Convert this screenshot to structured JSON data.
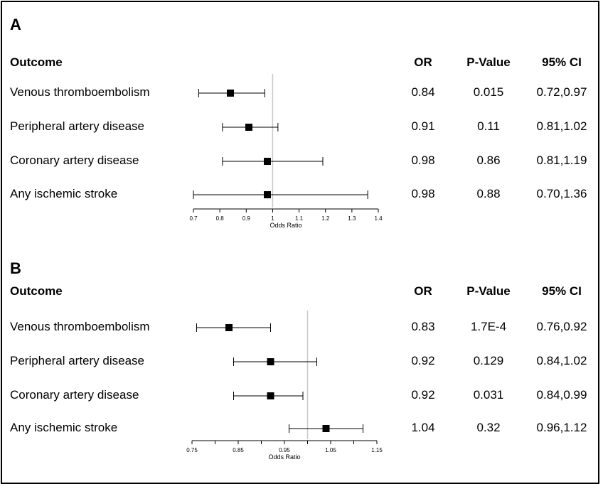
{
  "chart_data": [
    {
      "type": "forest",
      "panel": "A",
      "headers": {
        "label": "Outcome",
        "or": "OR",
        "p": "P-Value",
        "ci": "95% CI"
      },
      "rows": [
        {
          "label": "Venous thromboembolism",
          "or": 0.84,
          "lo": 0.72,
          "hi": 0.97,
          "or_text": "0.84",
          "p_text": "0.015",
          "ci_text": "0.72,0.97"
        },
        {
          "label": "Peripheral artery disease",
          "or": 0.91,
          "lo": 0.81,
          "hi": 1.02,
          "or_text": "0.91",
          "p_text": "0.11",
          "ci_text": "0.81,1.02"
        },
        {
          "label": "Coronary artery disease",
          "or": 0.98,
          "lo": 0.81,
          "hi": 1.19,
          "or_text": "0.98",
          "p_text": "0.86",
          "ci_text": "0.81,1.19"
        },
        {
          "label": "Any ischemic stroke",
          "or": 0.98,
          "lo": 0.7,
          "hi": 1.36,
          "or_text": "0.98",
          "p_text": "0.88",
          "ci_text": "0.70,1.36"
        }
      ],
      "xlim": [
        0.7,
        1.4
      ],
      "ticks": [
        0.7,
        0.8,
        0.9,
        1.0,
        1.1,
        1.2,
        1.3,
        1.4
      ],
      "tick_labels": [
        "0.7",
        "0.8",
        "0.9",
        "1",
        "1.1",
        "1.2",
        "1.3",
        "1.4"
      ],
      "reference": 1.0,
      "xlabel": "Odds Ratio"
    },
    {
      "type": "forest",
      "panel": "B",
      "headers": {
        "label": "Outcome",
        "or": "OR",
        "p": "P-Value",
        "ci": "95% CI"
      },
      "rows": [
        {
          "label": "Venous thromboembolism",
          "or": 0.83,
          "lo": 0.76,
          "hi": 0.92,
          "or_text": "0.83",
          "p_text": "1.7E-4",
          "ci_text": "0.76,0.92"
        },
        {
          "label": "Peripheral artery disease",
          "or": 0.92,
          "lo": 0.84,
          "hi": 1.02,
          "or_text": "0.92",
          "p_text": "0.129",
          "ci_text": "0.84,1.02"
        },
        {
          "label": "Coronary artery disease",
          "or": 0.92,
          "lo": 0.84,
          "hi": 0.99,
          "or_text": "0.92",
          "p_text": "0.031",
          "ci_text": "0.84,0.99"
        },
        {
          "label": "Any ischemic stroke",
          "or": 1.04,
          "lo": 0.96,
          "hi": 1.12,
          "or_text": "1.04",
          "p_text": "0.32",
          "ci_text": "0.96,1.12"
        }
      ],
      "xlim": [
        0.75,
        1.15
      ],
      "ticks": [
        0.75,
        0.8,
        0.85,
        0.9,
        0.95,
        1.0,
        1.05,
        1.1,
        1.15
      ],
      "tick_labels": [
        "0.75",
        "",
        "0.85",
        "",
        "0.95",
        "",
        "1.05",
        "",
        "1.15"
      ],
      "reference": 1.0,
      "xlabel": "Odds Ratio"
    }
  ]
}
